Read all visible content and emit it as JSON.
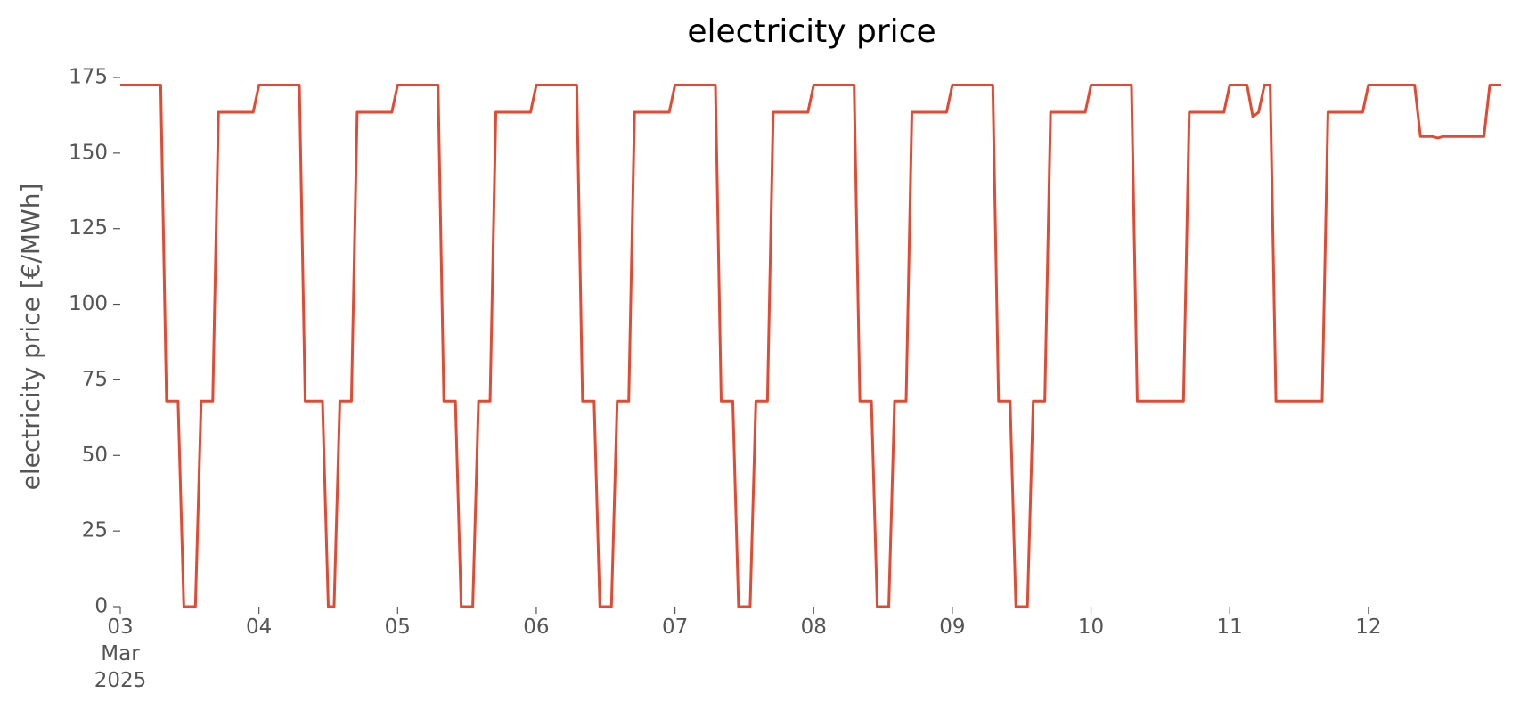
{
  "chart_data": {
    "type": "line",
    "title": "electricity price",
    "ylabel": "electricity price [€/MWh]",
    "color": "#E24A33",
    "x": [
      3,
      3.2917,
      3.3333,
      3.4167,
      3.4583,
      3.5417,
      3.5833,
      3.6667,
      3.7083,
      3.9583,
      4,
      4.2917,
      4.3333,
      4.4583,
      4.5,
      4.5417,
      4.5833,
      4.6667,
      4.7083,
      4.9583,
      5,
      5.2917,
      5.3333,
      5.4167,
      5.4583,
      5.5417,
      5.5833,
      5.6667,
      5.7083,
      5.9583,
      6,
      6.2917,
      6.3333,
      6.4167,
      6.4583,
      6.5417,
      6.5833,
      6.6667,
      6.7083,
      6.9583,
      7,
      7.2917,
      7.3333,
      7.4167,
      7.4583,
      7.5417,
      7.5833,
      7.6667,
      7.7083,
      7.9583,
      8,
      8.2917,
      8.3333,
      8.4167,
      8.4583,
      8.5417,
      8.5833,
      8.6667,
      8.7083,
      8.9583,
      9,
      9.2917,
      9.3333,
      9.4167,
      9.4583,
      9.5417,
      9.5833,
      9.6667,
      9.7083,
      9.9583,
      10,
      10.2917,
      10.3333,
      10.6667,
      10.7083,
      10.9583,
      11,
      11.125,
      11.1667,
      11.2083,
      11.25,
      11.2917,
      11.3333,
      11.6667,
      11.7083,
      11.9583,
      12,
      12.3333,
      12.375,
      12.4583,
      12.5,
      12.5417,
      12.8333,
      12.875,
      12.9583
    ],
    "values": [
      172.5,
      172.5,
      68,
      68,
      0,
      0,
      68,
      68,
      163.5,
      163.5,
      172.5,
      172.5,
      68,
      68,
      0,
      0,
      68,
      68,
      163.5,
      163.5,
      172.5,
      172.5,
      68,
      68,
      0,
      0,
      68,
      68,
      163.5,
      163.5,
      172.5,
      172.5,
      68,
      68,
      0,
      0,
      68,
      68,
      163.5,
      163.5,
      172.5,
      172.5,
      68,
      68,
      0,
      0,
      68,
      68,
      163.5,
      163.5,
      172.5,
      172.5,
      68,
      68,
      0,
      0,
      68,
      68,
      163.5,
      163.5,
      172.5,
      172.5,
      68,
      68,
      0,
      0,
      68,
      68,
      163.5,
      163.5,
      172.5,
      172.5,
      68,
      68,
      163.5,
      163.5,
      172.5,
      172.5,
      162,
      163.5,
      172.5,
      172.5,
      68,
      68,
      163.5,
      163.5,
      172.5,
      172.5,
      155.5,
      155.5,
      155,
      155.5,
      155.5,
      172.5,
      172.5
    ],
    "xlim": [
      3,
      12.9583
    ],
    "xticks": [
      {
        "value": 3,
        "label": "03\nMar\n2025"
      },
      {
        "value": 4,
        "label": "04"
      },
      {
        "value": 5,
        "label": "05"
      },
      {
        "value": 6,
        "label": "06"
      },
      {
        "value": 7,
        "label": "07"
      },
      {
        "value": 8,
        "label": "08"
      },
      {
        "value": 9,
        "label": "09"
      },
      {
        "value": 10,
        "label": "10"
      },
      {
        "value": 11,
        "label": "11"
      },
      {
        "value": 12,
        "label": "12"
      }
    ],
    "ylim": [
      0,
      175
    ],
    "yticks": [
      0,
      25,
      50,
      75,
      100,
      125,
      150,
      175
    ],
    "grid": false
  }
}
